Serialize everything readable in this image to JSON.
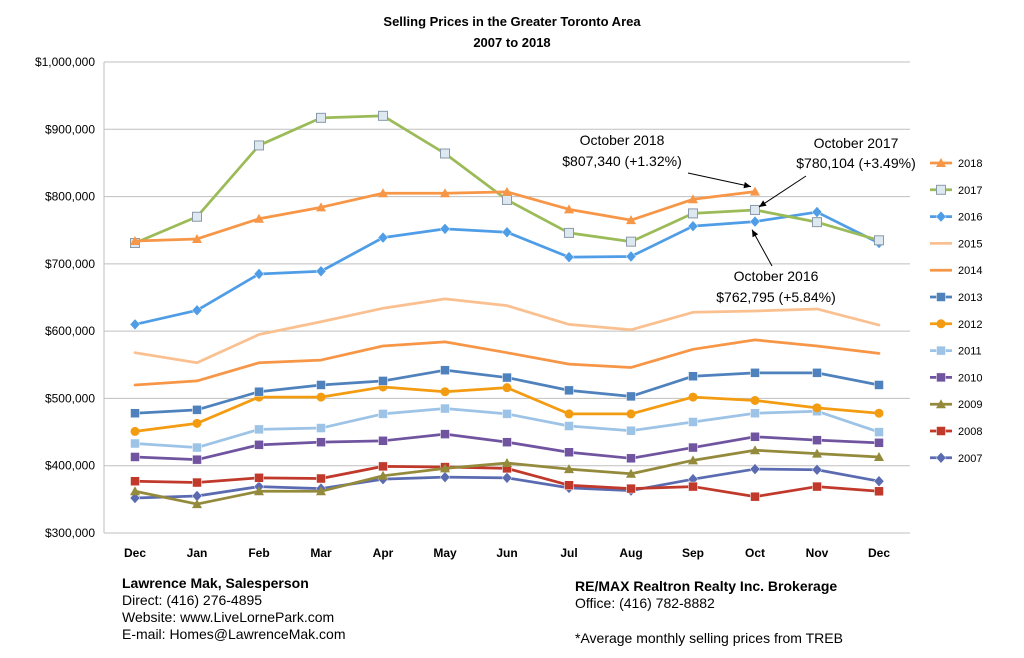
{
  "chart_data": {
    "type": "line",
    "title": "Selling Prices in the Greater Toronto Area",
    "subtitle": "2007 to 2018",
    "categories": [
      "Dec",
      "Jan",
      "Feb",
      "Mar",
      "Apr",
      "May",
      "Jun",
      "Jul",
      "Aug",
      "Sep",
      "Oct",
      "Nov",
      "Dec"
    ],
    "ylim": [
      300000,
      1000000
    ],
    "yticks": [
      300000,
      400000,
      500000,
      600000,
      700000,
      800000,
      900000,
      1000000
    ],
    "ytick_labels": [
      "$300,000",
      "$400,000",
      "$500,000",
      "$600,000",
      "$700,000",
      "$800,000",
      "$900,000",
      "$1,000,000"
    ],
    "grid": "horizontal",
    "legend_position": "right",
    "series": [
      {
        "name": "2018",
        "color": "#f79646",
        "marker": "triangle",
        "values": [
          734000,
          737000,
          767000,
          784000,
          805000,
          805000,
          807000,
          781000,
          765000,
          796000,
          807340,
          null,
          null
        ]
      },
      {
        "name": "2017",
        "color": "#9bbb59",
        "marker": "square-open",
        "values": [
          731000,
          770000,
          876000,
          917000,
          920000,
          864000,
          795000,
          746000,
          733000,
          775000,
          780104,
          762000,
          735000
        ]
      },
      {
        "name": "2016",
        "color": "#4f9de6",
        "marker": "diamond",
        "values": [
          610000,
          631000,
          685000,
          689000,
          739000,
          752000,
          747000,
          710000,
          711000,
          756000,
          762795,
          777000,
          731000
        ]
      },
      {
        "name": "2015",
        "color": "#fac090",
        "marker": "none",
        "values": [
          568000,
          553000,
          595000,
          614000,
          634000,
          648000,
          638000,
          610000,
          602000,
          628000,
          630000,
          633000,
          609000
        ]
      },
      {
        "name": "2014",
        "color": "#f79646",
        "marker": "none",
        "values": [
          520000,
          526000,
          553000,
          557000,
          578000,
          584000,
          568000,
          551000,
          546000,
          573000,
          587000,
          578000,
          567000
        ]
      },
      {
        "name": "2013",
        "color": "#4f81bd",
        "marker": "square",
        "values": [
          478000,
          483000,
          510000,
          520000,
          526000,
          542000,
          531000,
          512000,
          503000,
          533000,
          538000,
          538000,
          520000
        ]
      },
      {
        "name": "2012",
        "color": "#f39c12",
        "marker": "circle",
        "values": [
          451000,
          463000,
          502000,
          502000,
          517000,
          510000,
          516000,
          477000,
          477000,
          502000,
          497000,
          486000,
          478000
        ]
      },
      {
        "name": "2011",
        "color": "#9dc3e6",
        "marker": "square",
        "values": [
          433000,
          427000,
          454000,
          456000,
          477000,
          485000,
          477000,
          459000,
          452000,
          465000,
          478000,
          481000,
          450000
        ]
      },
      {
        "name": "2010",
        "color": "#7054a0",
        "marker": "square",
        "values": [
          413000,
          409000,
          431000,
          435000,
          437000,
          447000,
          435000,
          420000,
          411000,
          427000,
          443000,
          438000,
          434000
        ]
      },
      {
        "name": "2009",
        "color": "#948a3c",
        "marker": "triangle",
        "values": [
          362000,
          343000,
          362000,
          362000,
          385000,
          396000,
          404000,
          395000,
          388000,
          408000,
          423000,
          418000,
          413000
        ]
      },
      {
        "name": "2008",
        "color": "#c0392b",
        "marker": "square",
        "values": [
          377000,
          375000,
          382000,
          381000,
          399000,
          398000,
          396000,
          371000,
          366000,
          369000,
          354000,
          369000,
          362000
        ]
      },
      {
        "name": "2007",
        "color": "#5b6bb1",
        "marker": "diamond",
        "values": [
          352000,
          355000,
          369000,
          366000,
          380000,
          383000,
          382000,
          367000,
          363000,
          380000,
          395000,
          394000,
          377000
        ]
      }
    ],
    "annotations": [
      {
        "line1": "October 2018",
        "line2": "$807,340 (+1.32%)",
        "series": "2018",
        "index": 10
      },
      {
        "line1": "October 2017",
        "line2": "$780,104 (+3.49%)",
        "series": "2017",
        "index": 10
      },
      {
        "line1": "October 2016",
        "line2": "$762,795 (+5.84%)",
        "series": "2016",
        "index": 10
      }
    ]
  },
  "footer": {
    "agent_name": "Lawrence Mak, Salesperson",
    "direct": "Direct:  (416) 276-4895",
    "website": "Website:  www.LiveLornePark.com",
    "email": "E-mail:  Homes@LawrenceMak.com",
    "brokerage": "RE/MAX Realtron Realty Inc. Brokerage",
    "office": "Office: (416) 782-8882",
    "note": "*Average monthly selling prices from TREB"
  }
}
